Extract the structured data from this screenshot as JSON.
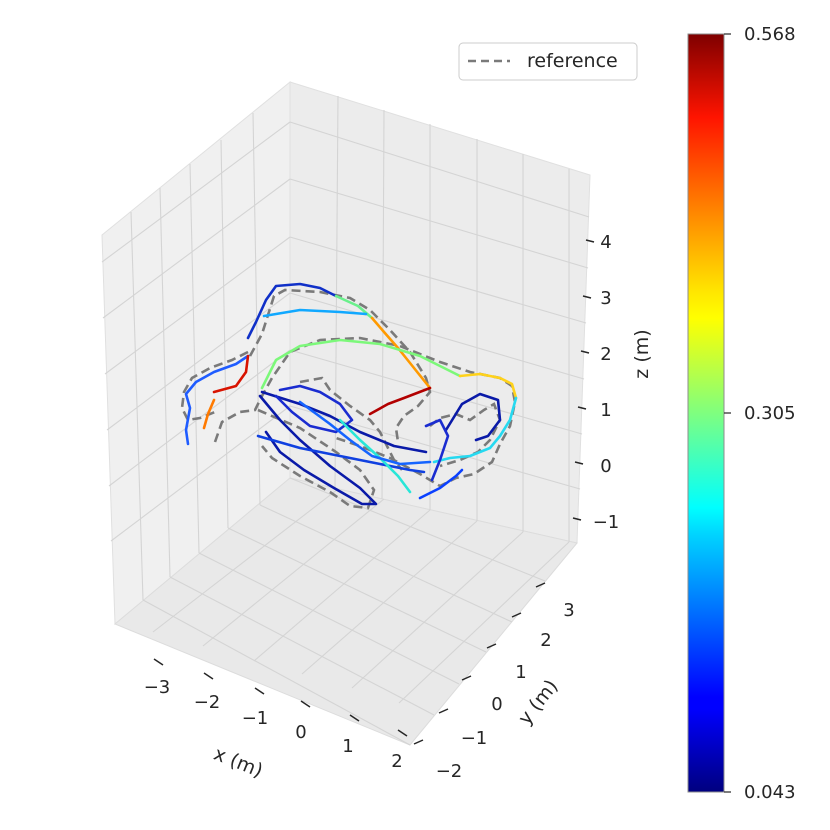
{
  "chart_data": {
    "type": "line",
    "projection": "3d",
    "xlabel": "x (m)",
    "ylabel": "y (m)",
    "zlabel": "z (m)",
    "x_ticks": [
      "−3",
      "−2",
      "−1",
      "0",
      "1",
      "2"
    ],
    "y_ticks": [
      "−2",
      "−1",
      "0",
      "1",
      "2",
      "3"
    ],
    "z_ticks": [
      "−1",
      "0",
      "1",
      "2",
      "3",
      "4"
    ],
    "grid": true,
    "legend": {
      "placement": "top-right",
      "entries": [
        "reference"
      ]
    },
    "reference_style": {
      "color": "#7a7a7a",
      "dash": "dashed"
    },
    "colorbar": {
      "colormap": "jet",
      "min": 0.043,
      "max": 0.568,
      "ticks": [
        "0.568",
        "0.305",
        "0.043"
      ]
    },
    "series": [
      {
        "name": "reference"
      }
    ]
  }
}
